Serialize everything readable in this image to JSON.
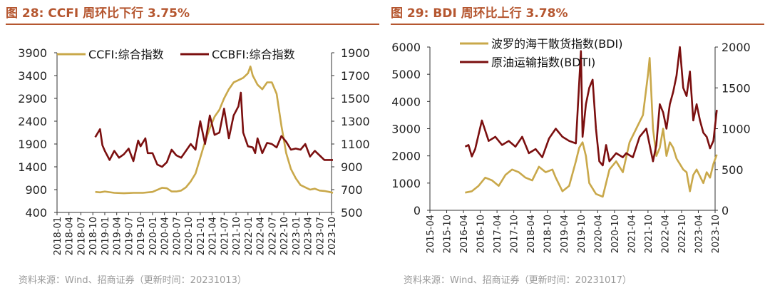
{
  "colors": {
    "gold": "#c9a84a",
    "maroon": "#7b0f0f",
    "title": "#b5562f",
    "source": "#9a9a9a",
    "axis": "#333333"
  },
  "charts": [
    {
      "title": "图 28:  CCFI 周环比下行 3.75%",
      "source": "资料来源：Wind、招商证券（更新时间：20231013）"
    },
    {
      "title": "图 29:  BDI 周环比上行 3.78%",
      "source": "资料来源：Wind、招商证券（更新时间：20231017）"
    }
  ],
  "chart_data": [
    {
      "type": "line",
      "title": "CCFI 周环比下行 3.75%",
      "y_left": {
        "min": 400,
        "max": 3900,
        "ticks": [
          3900,
          3400,
          2900,
          2400,
          1900,
          1400,
          900,
          400
        ]
      },
      "y_right": {
        "min": 500,
        "max": 1900,
        "ticks": [
          1900,
          1700,
          1500,
          1300,
          1100,
          900,
          700,
          500
        ]
      },
      "x_ticks": [
        "2018-01",
        "2018-04",
        "2018-07",
        "2018-10",
        "2019-01",
        "2019-04",
        "2019-07",
        "2019-10",
        "2020-01",
        "2020-04",
        "2020-07",
        "2020-10",
        "2021-01",
        "2021-04",
        "2021-07",
        "2021-10",
        "2022-01",
        "2022-04",
        "2022-07",
        "2022-10",
        "2023-01",
        "2023-04",
        "2023-07",
        "2023-10"
      ],
      "series": [
        {
          "name": "CCFI:综合指数",
          "axis": "left",
          "color": "gold",
          "x": [
            2018.8,
            2018.9,
            2019.0,
            2019.2,
            2019.4,
            2019.6,
            2019.8,
            2020.0,
            2020.2,
            2020.3,
            2020.4,
            2020.5,
            2020.6,
            2020.7,
            2020.8,
            2020.9,
            2021.0,
            2021.1,
            2021.2,
            2021.3,
            2021.4,
            2021.5,
            2021.6,
            2021.7,
            2021.8,
            2021.9,
            2022.0,
            2022.05,
            2022.1,
            2022.2,
            2022.3,
            2022.4,
            2022.5,
            2022.6,
            2022.7,
            2022.8,
            2022.9,
            2023.0,
            2023.1,
            2023.2,
            2023.3,
            2023.4,
            2023.5,
            2023.6,
            2023.7,
            2023.78
          ],
          "values": [
            850,
            840,
            860,
            830,
            820,
            830,
            830,
            850,
            940,
            930,
            860,
            860,
            880,
            950,
            1080,
            1250,
            1600,
            1950,
            2250,
            2500,
            2650,
            2900,
            3100,
            3250,
            3300,
            3350,
            3450,
            3600,
            3400,
            3200,
            3100,
            3250,
            3250,
            3000,
            2300,
            1700,
            1350,
            1150,
            1000,
            950,
            900,
            920,
            880,
            870,
            850,
            830
          ]
        },
        {
          "name": "CCBFI:综合指数",
          "axis": "right",
          "color": "maroon",
          "x": [
            2018.8,
            2018.9,
            2018.95,
            2019.0,
            2019.1,
            2019.15,
            2019.2,
            2019.3,
            2019.4,
            2019.5,
            2019.6,
            2019.7,
            2019.75,
            2019.85,
            2019.9,
            2020.0,
            2020.1,
            2020.2,
            2020.3,
            2020.4,
            2020.5,
            2020.6,
            2020.7,
            2020.8,
            2020.9,
            2021.0,
            2021.1,
            2021.2,
            2021.3,
            2021.4,
            2021.5,
            2021.6,
            2021.7,
            2021.8,
            2021.85,
            2021.9,
            2022.0,
            2022.1,
            2022.15,
            2022.2,
            2022.3,
            2022.4,
            2022.5,
            2022.6,
            2022.7,
            2022.8,
            2022.9,
            2023.0,
            2023.1,
            2023.2,
            2023.3,
            2023.4,
            2023.5,
            2023.6,
            2023.7,
            2023.78
          ],
          "values": [
            1160,
            1230,
            1090,
            1040,
            960,
            1000,
            1040,
            980,
            1010,
            1060,
            950,
            1130,
            1080,
            1150,
            1020,
            1020,
            920,
            900,
            940,
            1050,
            1000,
            980,
            1040,
            1100,
            1050,
            1300,
            1100,
            1350,
            1180,
            1200,
            1410,
            1150,
            1350,
            1430,
            1550,
            1200,
            1080,
            1070,
            1020,
            1150,
            1020,
            1110,
            1100,
            1070,
            1170,
            1120,
            1050,
            1060,
            1050,
            1100,
            990,
            1040,
            1000,
            960,
            960,
            960
          ]
        }
      ]
    },
    {
      "type": "line",
      "title": "BDI 周环比上行 3.78%",
      "y_left": {
        "min": 0,
        "max": 6000,
        "ticks": [
          6000,
          5000,
          4000,
          3000,
          2000,
          1000,
          0
        ]
      },
      "y_right": {
        "min": 0,
        "max": 2000,
        "ticks": [
          2000,
          1500,
          1000,
          500,
          0
        ]
      },
      "x_ticks": [
        "2015-04",
        "2015-10",
        "2016-04",
        "2016-10",
        "2017-04",
        "2017-10",
        "2018-04",
        "2018-10",
        "2019-04",
        "2019-10",
        "2020-04",
        "2020-10",
        "2021-04",
        "2021-10",
        "2022-04",
        "2022-10",
        "2023-04",
        "2023-10"
      ],
      "series": [
        {
          "name": "波罗的海干散货指数(BDI)",
          "axis": "left",
          "color": "gold",
          "x": [
            2016.3,
            2016.5,
            2016.7,
            2016.9,
            2017.1,
            2017.3,
            2017.5,
            2017.7,
            2017.9,
            2018.1,
            2018.3,
            2018.5,
            2018.7,
            2018.9,
            2019.0,
            2019.2,
            2019.4,
            2019.6,
            2019.7,
            2019.8,
            2019.9,
            2020.0,
            2020.2,
            2020.4,
            2020.6,
            2020.8,
            2021.0,
            2021.2,
            2021.4,
            2021.6,
            2021.75,
            2021.8,
            2021.9,
            2022.0,
            2022.1,
            2022.2,
            2022.3,
            2022.4,
            2022.5,
            2022.6,
            2022.7,
            2022.8,
            2022.9,
            2023.0,
            2023.1,
            2023.2,
            2023.4,
            2023.5,
            2023.6,
            2023.7,
            2023.8
          ],
          "values": [
            650,
            700,
            900,
            1200,
            1100,
            900,
            1300,
            1500,
            1400,
            1200,
            1100,
            1600,
            1400,
            1500,
            1200,
            700,
            900,
            1800,
            2300,
            2500,
            2000,
            1000,
            600,
            500,
            1500,
            1800,
            1400,
            2500,
            3000,
            3500,
            5000,
            5600,
            3000,
            2000,
            2300,
            3000,
            2000,
            2500,
            2300,
            1900,
            1700,
            1500,
            1400,
            700,
            1300,
            1500,
            1000,
            1400,
            1200,
            1700,
            2050
          ]
        },
        {
          "name": "原油运输指数(BDTI)",
          "axis": "right",
          "color": "maroon",
          "x": [
            2016.3,
            2016.4,
            2016.5,
            2016.6,
            2016.8,
            2017.0,
            2017.2,
            2017.4,
            2017.6,
            2017.8,
            2018.0,
            2018.2,
            2018.4,
            2018.6,
            2018.8,
            2019.0,
            2019.2,
            2019.4,
            2019.6,
            2019.75,
            2019.8,
            2019.9,
            2020.0,
            2020.1,
            2020.2,
            2020.3,
            2020.4,
            2020.5,
            2020.6,
            2020.8,
            2021.0,
            2021.1,
            2021.3,
            2021.5,
            2021.7,
            2021.9,
            2022.0,
            2022.1,
            2022.2,
            2022.3,
            2022.4,
            2022.5,
            2022.6,
            2022.7,
            2022.8,
            2022.9,
            2023.0,
            2023.1,
            2023.2,
            2023.3,
            2023.4,
            2023.5,
            2023.6,
            2023.7,
            2023.8
          ],
          "values": [
            780,
            800,
            660,
            750,
            1100,
            850,
            900,
            800,
            850,
            780,
            900,
            700,
            750,
            650,
            880,
            1000,
            900,
            850,
            820,
            1950,
            900,
            1300,
            1500,
            1600,
            1000,
            600,
            550,
            800,
            600,
            700,
            650,
            700,
            650,
            900,
            1000,
            600,
            800,
            1300,
            1200,
            1000,
            1300,
            1450,
            1650,
            2000,
            1500,
            1400,
            1700,
            1100,
            1300,
            1100,
            950,
            900,
            760,
            850,
            1230
          ]
        }
      ]
    }
  ]
}
